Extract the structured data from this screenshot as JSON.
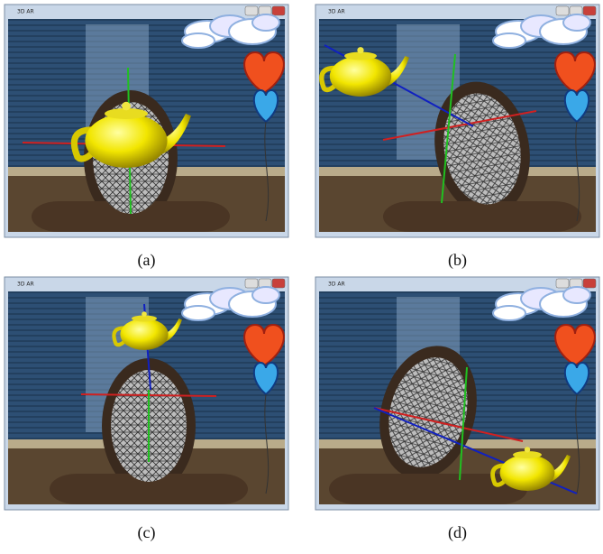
{
  "panels": [
    {
      "window_title": "3D AR",
      "caption": "(a)"
    },
    {
      "window_title": "3D AR",
      "caption": "(b)"
    },
    {
      "window_title": "3D AR",
      "caption": "(c)"
    },
    {
      "window_title": "3D AR",
      "caption": "(d)"
    }
  ]
}
